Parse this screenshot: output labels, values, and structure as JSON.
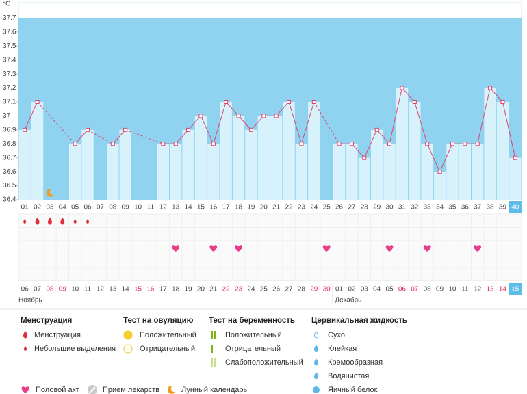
{
  "chart_data": {
    "type": "line",
    "unit": "°C",
    "categories": [
      "01",
      "02",
      "03",
      "04",
      "05",
      "06",
      "07",
      "08",
      "09",
      "10",
      "11",
      "12",
      "13",
      "14",
      "15",
      "16",
      "17",
      "18",
      "19",
      "20",
      "21",
      "22",
      "23",
      "24",
      "25",
      "26",
      "27",
      "28",
      "29",
      "30",
      "31",
      "32",
      "33",
      "34",
      "35",
      "36",
      "37",
      "38",
      "39",
      "40"
    ],
    "values": [
      36.9,
      37.1,
      null,
      null,
      36.8,
      36.9,
      null,
      36.8,
      36.9,
      null,
      null,
      36.8,
      36.8,
      36.9,
      37.0,
      36.8,
      37.1,
      37.0,
      36.9,
      37.0,
      37.0,
      37.1,
      36.8,
      37.1,
      null,
      36.8,
      36.8,
      36.7,
      36.9,
      36.8,
      37.2,
      37.1,
      36.8,
      36.6,
      36.8,
      36.8,
      36.8,
      37.2,
      37.1,
      36.7
    ],
    "color": "#e0416a",
    "ylim": [
      36.4,
      37.8
    ],
    "yticks": [
      36.4,
      36.5,
      36.6,
      36.7,
      36.8,
      36.9,
      37,
      37.1,
      37.2,
      37.3,
      37.4,
      37.5,
      37.6,
      37.7
    ],
    "dates": [
      "06",
      "07",
      "08",
      "09",
      "10",
      "11",
      "12",
      "13",
      "14",
      "15",
      "16",
      "17",
      "18",
      "19",
      "20",
      "21",
      "22",
      "23",
      "24",
      "25",
      "26",
      "27",
      "28",
      "29",
      "30",
      "01",
      "02",
      "03",
      "04",
      "05",
      "06",
      "07",
      "08",
      "09",
      "10",
      "11",
      "12",
      "13",
      "14",
      "15"
    ],
    "weekend": [
      false,
      false,
      true,
      true,
      false,
      false,
      false,
      false,
      false,
      true,
      true,
      false,
      false,
      false,
      false,
      false,
      true,
      true,
      false,
      false,
      false,
      false,
      false,
      true,
      true,
      false,
      false,
      false,
      false,
      false,
      true,
      true,
      false,
      false,
      false,
      false,
      false,
      true,
      true,
      false
    ],
    "months": [
      "Ноябрь",
      "Декабрь"
    ],
    "menstruation_heavy_days": [
      2,
      3,
      4
    ],
    "menstruation_light_days": [
      1,
      5,
      6
    ],
    "intercourse_days": [
      13,
      16,
      18,
      25,
      30,
      33,
      37
    ],
    "moon_days": [
      3
    ]
  },
  "legend": {
    "groups": [
      {
        "title": "Менструация",
        "items": [
          "Менструация",
          "Небольшие выделения"
        ]
      },
      {
        "title": "Тест на овуляцию",
        "items": [
          "Положительный",
          "Отрицательный"
        ]
      },
      {
        "title": "Тест на беременность",
        "items": [
          "Положительный",
          "Отрицательный",
          "Слабоположительный"
        ]
      },
      {
        "title": "Цервикальная жидкость",
        "items": [
          "Сухо",
          "Клейкая",
          "Кремообразная",
          "Водянистая",
          "Яичный белок"
        ]
      }
    ],
    "extras": [
      "Половой акт",
      "Прием лекарств",
      "Лунный календарь"
    ]
  }
}
